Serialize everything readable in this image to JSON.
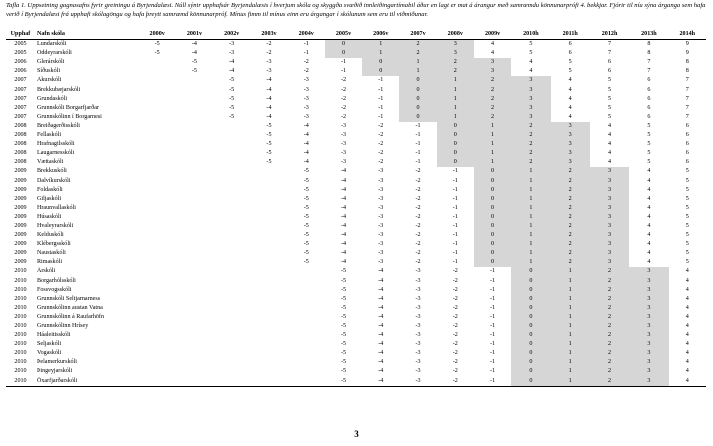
{
  "caption": "Tafla 1. Uppsetning gagnasafns fyrir greiningu á Byrjendalæsi. Núll sýnir upphafsár Byrjendalæsis í hverjum skóla og skyggða svæðið innleiðingartímabil áður en lagt er mat á árangur með samræmdu könnunarprófi 4. bekkjar. Fjórir til níu sýna árganga sem hafa verið í Byrjendalæsi frá upphafi skólagöngu og hafa þreytt samræmd könnunarpróf. Mínus fimm til mínus einn eru árgangar í skólunum sem eru til viðmiðunar.",
  "headers": [
    "Upphaf",
    "Nafn skóla",
    "2000v",
    "2001v",
    "2002v",
    "2003v",
    "2004v",
    "2005v",
    "2006v",
    "2007v",
    "2008v",
    "2009v",
    "2010h",
    "2011h",
    "2012h",
    "2013h",
    "2014h"
  ],
  "page_number": "3",
  "rows": [
    {
      "year": "2005",
      "name": "Lundarskóli",
      "start": 0,
      "vals": [
        "-5",
        "-4",
        "-3",
        "-2",
        "-1",
        "0",
        "1",
        "2",
        "3",
        "4",
        "5",
        "6",
        "7",
        "8",
        "9"
      ]
    },
    {
      "year": "2005",
      "name": "Oddeyrarskóli",
      "start": 0,
      "vals": [
        "-5",
        "-4",
        "-3",
        "-2",
        "-1",
        "0",
        "1",
        "2",
        "3",
        "4",
        "5",
        "6",
        "7",
        "8",
        "9"
      ]
    },
    {
      "year": "2006",
      "name": "Glerárskóli",
      "start": 1,
      "vals": [
        "-5",
        "-4",
        "-3",
        "-2",
        "-1",
        "0",
        "1",
        "2",
        "3",
        "4",
        "5",
        "6",
        "7",
        "8"
      ]
    },
    {
      "year": "2006",
      "name": "Síðuskóli",
      "start": 1,
      "vals": [
        "-5",
        "-4",
        "-3",
        "-2",
        "-1",
        "0",
        "1",
        "2",
        "3",
        "4",
        "5",
        "6",
        "7",
        "8"
      ]
    },
    {
      "year": "2007",
      "name": "Akurskóli",
      "start": 2,
      "vals": [
        "-5",
        "-4",
        "-3",
        "-2",
        "-1",
        "0",
        "1",
        "2",
        "3",
        "4",
        "5",
        "6",
        "7"
      ]
    },
    {
      "year": "2007",
      "name": "Brekkubæjarskóli",
      "start": 2,
      "vals": [
        "-5",
        "-4",
        "-3",
        "-2",
        "-1",
        "0",
        "1",
        "2",
        "3",
        "4",
        "5",
        "6",
        "7"
      ]
    },
    {
      "year": "2007",
      "name": "Grundaskóli",
      "start": 2,
      "vals": [
        "-5",
        "-4",
        "-3",
        "-2",
        "-1",
        "0",
        "1",
        "2",
        "3",
        "4",
        "5",
        "6",
        "7"
      ]
    },
    {
      "year": "2007",
      "name": "Grunnskóli Borgarfjarðar",
      "start": 2,
      "vals": [
        "-5",
        "-4",
        "-3",
        "-2",
        "-1",
        "0",
        "1",
        "2",
        "3",
        "4",
        "5",
        "6",
        "7"
      ]
    },
    {
      "year": "2007",
      "name": "Grunnskólinn í Borgarnesi",
      "start": 2,
      "vals": [
        "-5",
        "-4",
        "-3",
        "-2",
        "-1",
        "0",
        "1",
        "2",
        "3",
        "4",
        "5",
        "6",
        "7"
      ]
    },
    {
      "year": "2008",
      "name": "Breiðagerðisskóli",
      "start": 3,
      "vals": [
        "-5",
        "-4",
        "-3",
        "-2",
        "-1",
        "0",
        "1",
        "2",
        "3",
        "4",
        "5",
        "6"
      ]
    },
    {
      "year": "2008",
      "name": "Fellaskóli",
      "start": 3,
      "vals": [
        "-5",
        "-4",
        "-3",
        "-2",
        "-1",
        "0",
        "1",
        "2",
        "3",
        "4",
        "5",
        "6"
      ]
    },
    {
      "year": "2008",
      "name": "Hrafnagilsskóli",
      "start": 3,
      "vals": [
        "-5",
        "-4",
        "-3",
        "-2",
        "-1",
        "0",
        "1",
        "2",
        "3",
        "4",
        "5",
        "6"
      ]
    },
    {
      "year": "2008",
      "name": "Laugarnesskóli",
      "start": 3,
      "vals": [
        "-5",
        "-4",
        "-3",
        "-2",
        "-1",
        "0",
        "1",
        "2",
        "3",
        "4",
        "5",
        "6"
      ]
    },
    {
      "year": "2008",
      "name": "Vættaskóli",
      "start": 3,
      "vals": [
        "-5",
        "-4",
        "-3",
        "-2",
        "-1",
        "0",
        "1",
        "2",
        "3",
        "4",
        "5",
        "6"
      ]
    },
    {
      "year": "2009",
      "name": "Brekkuskóli",
      "start": 4,
      "vals": [
        "-5",
        "-4",
        "-3",
        "-2",
        "-1",
        "0",
        "1",
        "2",
        "3",
        "4",
        "5"
      ]
    },
    {
      "year": "2009",
      "name": "Dalvíkurskóli",
      "start": 4,
      "vals": [
        "-5",
        "-4",
        "-3",
        "-2",
        "-1",
        "0",
        "1",
        "2",
        "3",
        "4",
        "5"
      ]
    },
    {
      "year": "2009",
      "name": "Foldaskóli",
      "start": 4,
      "vals": [
        "-5",
        "-4",
        "-3",
        "-2",
        "-1",
        "0",
        "1",
        "2",
        "3",
        "4",
        "5"
      ]
    },
    {
      "year": "2009",
      "name": "Giljaskóli",
      "start": 4,
      "vals": [
        "-5",
        "-4",
        "-3",
        "-2",
        "-1",
        "0",
        "1",
        "2",
        "3",
        "4",
        "5"
      ]
    },
    {
      "year": "2009",
      "name": "Hraunvallaskóli",
      "start": 4,
      "vals": [
        "-5",
        "-4",
        "-3",
        "-2",
        "-1",
        "0",
        "1",
        "2",
        "3",
        "4",
        "5"
      ]
    },
    {
      "year": "2009",
      "name": "Húsaskóli",
      "start": 4,
      "vals": [
        "-5",
        "-4",
        "-3",
        "-2",
        "-1",
        "0",
        "1",
        "2",
        "3",
        "4",
        "5"
      ]
    },
    {
      "year": "2009",
      "name": "Hvaleyrarskóli",
      "start": 4,
      "vals": [
        "-5",
        "-4",
        "-3",
        "-2",
        "-1",
        "0",
        "1",
        "2",
        "3",
        "4",
        "5"
      ]
    },
    {
      "year": "2009",
      "name": "Kelduskóli",
      "start": 4,
      "vals": [
        "-5",
        "-4",
        "-3",
        "-2",
        "-1",
        "0",
        "1",
        "2",
        "3",
        "4",
        "5"
      ]
    },
    {
      "year": "2009",
      "name": "Klébergsskóli",
      "start": 4,
      "vals": [
        "-5",
        "-4",
        "-3",
        "-2",
        "-1",
        "0",
        "1",
        "2",
        "3",
        "4",
        "5"
      ]
    },
    {
      "year": "2009",
      "name": "Naustaskóli",
      "start": 4,
      "vals": [
        "-5",
        "-4",
        "-3",
        "-2",
        "-1",
        "0",
        "1",
        "2",
        "3",
        "4",
        "5"
      ]
    },
    {
      "year": "2009",
      "name": "Rimaskóli",
      "start": 4,
      "vals": [
        "-5",
        "-4",
        "-3",
        "-2",
        "-1",
        "0",
        "1",
        "2",
        "3",
        "4",
        "5"
      ]
    },
    {
      "year": "2010",
      "name": "Árskóli",
      "start": 5,
      "vals": [
        "-5",
        "-4",
        "-3",
        "-2",
        "-1",
        "0",
        "1",
        "2",
        "3",
        "4"
      ]
    },
    {
      "year": "2010",
      "name": "Borgarhólsskóli",
      "start": 5,
      "vals": [
        "-5",
        "-4",
        "-3",
        "-2",
        "-1",
        "0",
        "1",
        "2",
        "3",
        "4"
      ]
    },
    {
      "year": "2010",
      "name": "Fossvogsskóli",
      "start": 5,
      "vals": [
        "-5",
        "-4",
        "-3",
        "-2",
        "-1",
        "0",
        "1",
        "2",
        "3",
        "4"
      ]
    },
    {
      "year": "2010",
      "name": "Grunnskóli Seltjarnarness",
      "start": 5,
      "vals": [
        "-5",
        "-4",
        "-3",
        "-2",
        "-1",
        "0",
        "1",
        "2",
        "3",
        "4"
      ]
    },
    {
      "year": "2010",
      "name": "Grunnskólinn austan Vatna",
      "start": 5,
      "vals": [
        "-5",
        "-4",
        "-3",
        "-2",
        "-1",
        "0",
        "1",
        "2",
        "3",
        "4"
      ]
    },
    {
      "year": "2010",
      "name": "Grunnskólinn á Raufarhöfn",
      "start": 5,
      "vals": [
        "-5",
        "-4",
        "-3",
        "-2",
        "-1",
        "0",
        "1",
        "2",
        "3",
        "4"
      ]
    },
    {
      "year": "2010",
      "name": "Grunnskólinn Hrísey",
      "start": 5,
      "vals": [
        "-5",
        "-4",
        "-3",
        "-2",
        "-1",
        "0",
        "1",
        "2",
        "3",
        "4"
      ]
    },
    {
      "year": "2010",
      "name": "Háaleitisskóli",
      "start": 5,
      "vals": [
        "-5",
        "-4",
        "-3",
        "-2",
        "-1",
        "0",
        "1",
        "2",
        "3",
        "4"
      ]
    },
    {
      "year": "2010",
      "name": "Seljaskóli",
      "start": 5,
      "vals": [
        "-5",
        "-4",
        "-3",
        "-2",
        "-1",
        "0",
        "1",
        "2",
        "3",
        "4"
      ]
    },
    {
      "year": "2010",
      "name": "Vogaskóli",
      "start": 5,
      "vals": [
        "-5",
        "-4",
        "-3",
        "-2",
        "-1",
        "0",
        "1",
        "2",
        "3",
        "4"
      ]
    },
    {
      "year": "2010",
      "name": "Þelamerkurskóli",
      "start": 5,
      "vals": [
        "-5",
        "-4",
        "-3",
        "-2",
        "-1",
        "0",
        "1",
        "2",
        "3",
        "4"
      ]
    },
    {
      "year": "2010",
      "name": "Þingeyjarskóli",
      "start": 5,
      "vals": [
        "-5",
        "-4",
        "-3",
        "-2",
        "-1",
        "0",
        "1",
        "2",
        "3",
        "4"
      ]
    },
    {
      "year": "2010",
      "name": "Öxarfjarðarskóli",
      "start": 5,
      "vals": [
        "-5",
        "-4",
        "-3",
        "-2",
        "-1",
        "0",
        "1",
        "2",
        "3",
        "4"
      ]
    }
  ],
  "shaded_values": [
    "0",
    "1",
    "2",
    "3"
  ],
  "shade_color": "#d6d6d6"
}
